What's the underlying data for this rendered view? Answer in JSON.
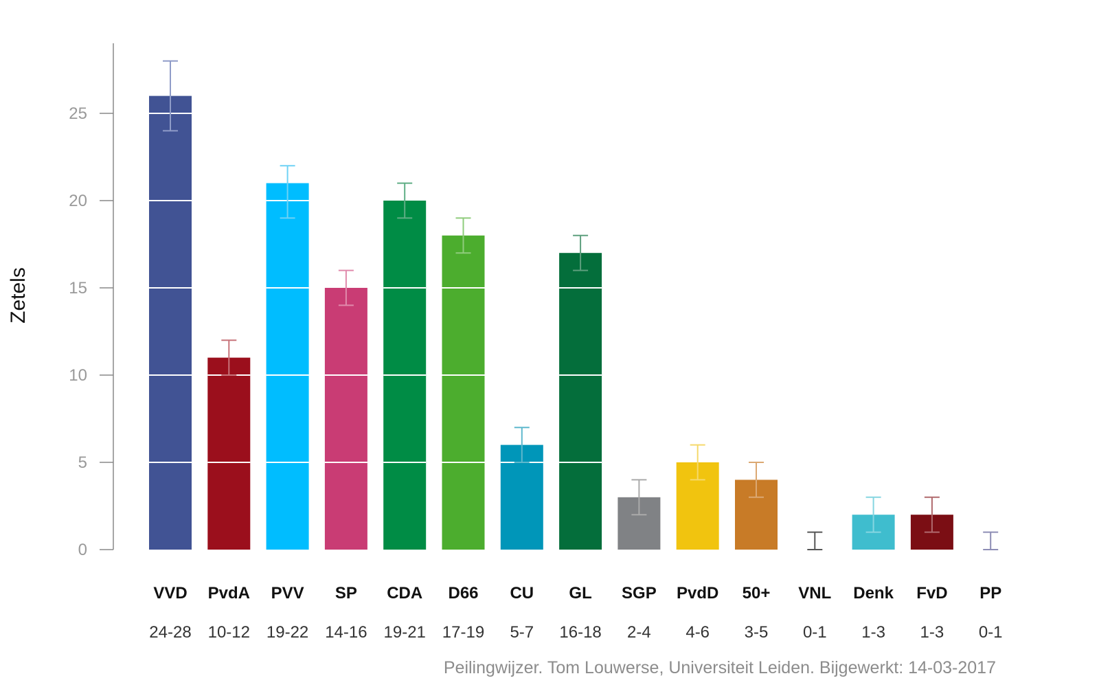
{
  "chart_data": {
    "type": "bar",
    "ylabel": "Zetels",
    "ylim": [
      0,
      28
    ],
    "yticks": [
      "0",
      "5",
      "10",
      "15",
      "20",
      "25"
    ],
    "gridlines": "white horizontal lines over bars at every 5",
    "source": "Peilingwijzer. Tom Louwerse, Universiteit Leiden. Bijgewerkt: 14-03-2017",
    "bars": [
      {
        "party": "VVD",
        "value": 26,
        "low": 24,
        "high": 28,
        "range": "24-28",
        "color": "#415394",
        "err_color": "#8f9cc8"
      },
      {
        "party": "PvdA",
        "value": 11,
        "low": 10,
        "high": 12,
        "range": "10-12",
        "color": "#9b0f1c",
        "err_color": "#c7737a"
      },
      {
        "party": "PVV",
        "value": 21,
        "low": 19,
        "high": 22,
        "range": "19-22",
        "color": "#00bdff",
        "err_color": "#6fd2f5"
      },
      {
        "party": "SP",
        "value": 15,
        "low": 14,
        "high": 16,
        "range": "14-16",
        "color": "#c93c74",
        "err_color": "#e08aac"
      },
      {
        "party": "CDA",
        "value": 20,
        "low": 19,
        "high": 21,
        "range": "19-21",
        "color": "#008c45",
        "err_color": "#5fae85"
      },
      {
        "party": "D66",
        "value": 18,
        "low": 17,
        "high": 19,
        "range": "17-19",
        "color": "#4cad2e",
        "err_color": "#8fcc7c"
      },
      {
        "party": "CU",
        "value": 6,
        "low": 5,
        "high": 7,
        "range": "5-7",
        "color": "#0096b9",
        "err_color": "#5fb8cd"
      },
      {
        "party": "GL",
        "value": 17,
        "low": 16,
        "high": 18,
        "range": "16-18",
        "color": "#046e3b",
        "err_color": "#5e9f7e"
      },
      {
        "party": "SGP",
        "value": 3,
        "low": 2,
        "high": 4,
        "range": "2-4",
        "color": "#808285",
        "err_color": "#aaaaaa"
      },
      {
        "party": "PvdD",
        "value": 5,
        "low": 4,
        "high": 6,
        "range": "4-6",
        "color": "#f1c40f",
        "err_color": "#f5d96b"
      },
      {
        "party": "50+",
        "value": 4,
        "low": 3,
        "high": 5,
        "range": "3-5",
        "color": "#c87b27",
        "err_color": "#dba872"
      },
      {
        "party": "VNL",
        "value": 0,
        "low": 0,
        "high": 1,
        "range": "0-1",
        "color": "#555555",
        "err_color": "#555555"
      },
      {
        "party": "Denk",
        "value": 2,
        "low": 1,
        "high": 3,
        "range": "1-3",
        "color": "#3fbdce",
        "err_color": "#86d6e1"
      },
      {
        "party": "FvD",
        "value": 2,
        "low": 1,
        "high": 3,
        "range": "1-3",
        "color": "#7b0e14",
        "err_color": "#b06a6e"
      },
      {
        "party": "PP",
        "value": 0,
        "low": 0,
        "high": 1,
        "range": "0-1",
        "color": "#8d8db5",
        "err_color": "#8d8db5"
      }
    ]
  }
}
